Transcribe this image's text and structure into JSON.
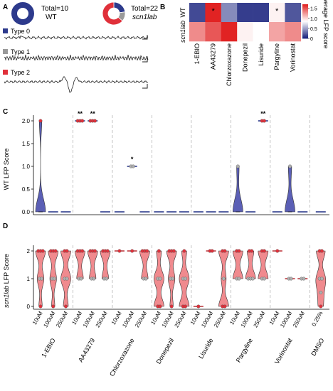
{
  "panel_labels": {
    "a": "A",
    "b": "B",
    "c": "C",
    "d": "D"
  },
  "panel_a": {
    "wt_total": "Total=10",
    "wt_label": "WT",
    "mut_total": "Total=22",
    "mut_label": "scn1lab",
    "types": [
      "Type 0",
      "Type 1",
      "Type 2"
    ],
    "type_colors": [
      "#2d3a8c",
      "#9a9a9a",
      "#e0303a"
    ],
    "wt_counts": [
      10,
      0,
      0
    ],
    "mut_counts": [
      5,
      3,
      14
    ]
  },
  "treatments": [
    "1-EBIO",
    "AA43279",
    "Chlorzoxazone",
    "Donepezil",
    "Lisuride",
    "Pargyline",
    "Vorinostat",
    "DMSO"
  ],
  "doses": [
    "10uM",
    "100uM",
    "250uM"
  ],
  "dmso_dose": "0.25%",
  "panel_b": {
    "rows": [
      "WT",
      "scn1lab"
    ],
    "colorbar_title": "Average LFP score",
    "colorbar_ticks": [
      "0",
      "0.5",
      "1.0",
      "1.5"
    ],
    "star": "*"
  },
  "panel_c": {
    "ylabel": "WT LFP Score",
    "yticks": [
      "0.0",
      "0.5",
      "1.0",
      "1.5",
      "2.0"
    ],
    "stars": [
      "**",
      "**",
      "*",
      "**"
    ]
  },
  "panel_d": {
    "ylabel_prefix": "scn1lab",
    "ylabel_suffix": " LFP Score",
    "yticks": [
      "0",
      "1",
      "2"
    ]
  },
  "colors": {
    "wt_violin": "#5b5fb5",
    "mut_violin": "#f08a8e",
    "point_red": "#e0303a",
    "point_gray": "#b0b0b0"
  },
  "chart_data": [
    {
      "type": "heatmap",
      "rows": [
        "WT",
        "scn1lab"
      ],
      "columns": [
        "1-EBIO",
        "AA43279",
        "Chlorzoxazone",
        "Donepezil",
        "Lisuride",
        "Pargyline",
        "Vorinostat"
      ],
      "values": [
        [
          0.15,
          1.7,
          0.4,
          0.1,
          0.1,
          0.9,
          0.2
        ],
        [
          1.3,
          1.5,
          1.7,
          0.9,
          0.85,
          1.2,
          1.3
        ]
      ],
      "zlim": [
        0,
        1.7
      ]
    },
    {
      "type": "violin",
      "ylabel": "WT LFP Score",
      "ylim": [
        0,
        2
      ],
      "groups": [
        [
          [
            0,
            0,
            0,
            0,
            2
          ],
          [
            0,
            0,
            0,
            0
          ],
          [
            0,
            0,
            0
          ]
        ],
        [
          [
            2,
            2,
            2
          ],
          [
            2,
            2,
            2
          ],
          [
            0,
            0,
            0
          ]
        ],
        [
          [
            0,
            0,
            0
          ],
          [
            1,
            1
          ],
          [
            0,
            0,
            0
          ]
        ],
        [
          [
            0,
            0,
            0
          ],
          [
            0,
            0,
            0
          ],
          [
            0,
            0,
            0
          ]
        ],
        [
          [
            0,
            0,
            0
          ],
          [
            0,
            0,
            0
          ],
          [
            0,
            0,
            0
          ]
        ],
        [
          [
            0,
            0,
            1,
            0,
            0
          ],
          [
            0,
            0,
            0
          ],
          [
            2,
            2
          ]
        ],
        [
          [
            0,
            0,
            0
          ],
          [
            0,
            0,
            1,
            0
          ],
          [
            0,
            0,
            0
          ]
        ],
        [
          [
            0,
            0,
            0,
            0,
            0
          ]
        ]
      ]
    },
    {
      "type": "violin",
      "ylabel": "scn1lab LFP Score",
      "ylim": [
        0,
        2
      ],
      "groups": [
        [
          [
            0,
            1,
            1,
            2,
            2,
            2
          ],
          [
            0,
            1,
            1,
            2,
            2,
            2
          ],
          [
            0,
            1,
            1,
            2,
            2
          ]
        ],
        [
          [
            1,
            1,
            2,
            2,
            2
          ],
          [
            1,
            1,
            2,
            2,
            2
          ],
          [
            1,
            1,
            2,
            2,
            2
          ]
        ],
        [
          [
            2
          ],
          [
            2
          ],
          [
            1,
            1,
            2,
            2,
            2
          ]
        ],
        [
          [
            0,
            0,
            1,
            1,
            2
          ],
          [
            0,
            1,
            1,
            2,
            2,
            2
          ],
          [
            0,
            0,
            1,
            1,
            2
          ]
        ],
        [
          [
            0
          ],
          [
            2,
            2
          ],
          [
            0,
            0,
            1,
            2,
            2
          ]
        ],
        [
          [
            1,
            1,
            2,
            2
          ],
          [
            1,
            1,
            1,
            2,
            2
          ],
          [
            1,
            1,
            2,
            2
          ]
        ],
        [
          [
            2
          ],
          [
            1,
            1
          ],
          [
            1,
            1
          ]
        ],
        [
          [
            0,
            0.5,
            1,
            1,
            2,
            2
          ]
        ]
      ]
    }
  ]
}
